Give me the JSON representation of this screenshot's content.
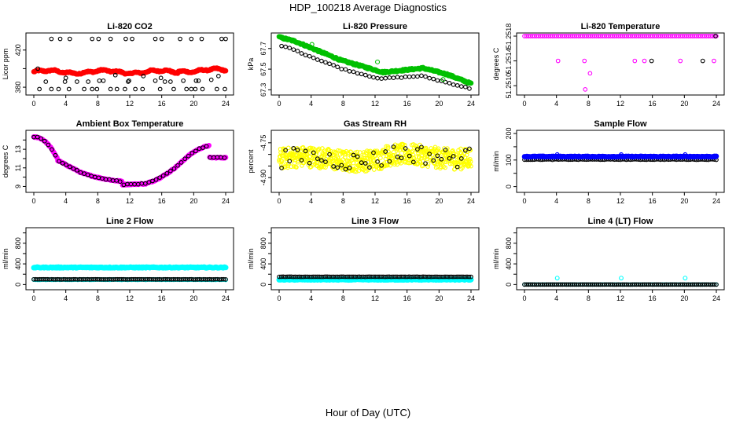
{
  "page": {
    "title": "HDP_100218  Average Diagnostics",
    "xlabel": "Hour of Day (UTC)"
  },
  "colors": {
    "black": "#000000",
    "red": "#ff0000",
    "green": "#00c000",
    "magenta": "#ff00ff",
    "yellow": "#ffff00",
    "blue": "#0000ff",
    "cyan": "#00ffff"
  },
  "chart_data": [
    {
      "id": "co2",
      "type": "scatter",
      "title": "Li-820 CO2",
      "ylabel": "Licor ppm",
      "xlim": [
        0,
        24
      ],
      "xticks": [
        0,
        4,
        8,
        12,
        16,
        20,
        24
      ],
      "ylim": [
        375,
        435
      ],
      "yticks": [
        380,
        400,
        420
      ],
      "yticklabels": [
        "380",
        "",
        "420"
      ],
      "series": [
        {
          "color": "#ff0000",
          "style": "band",
          "from": 0,
          "to": 24,
          "step": 0.1,
          "expr": "396.5+1.5*Math.sin(x*0.9)+0.8*Math.sin(x*3.1)+(x>18?1.5:0)",
          "jitter": 0.6,
          "size": 3.0
        },
        {
          "color": "#000000",
          "style": "points",
          "x": [
            0.7,
            2.2,
            3.1,
            4.4,
            6.3,
            7.3,
            7.9,
            9.6,
            10.4,
            11.4,
            12.7,
            13.6,
            15.8,
            17.5,
            19.1,
            19.7,
            20.2,
            21.1,
            22.9,
            23.9,
            0.5,
            1.5,
            4.0,
            5.4,
            6.8,
            8.7,
            10.2,
            11.9,
            13.7,
            15.2,
            15.9,
            17.1,
            18.7,
            20.3,
            22.2,
            23.1,
            3.9,
            8.2,
            11.8,
            16.4,
            20.6
          ],
          "y": [
            378,
            378,
            378,
            378,
            378,
            378,
            378,
            378,
            378,
            378,
            378,
            378,
            378,
            378,
            378,
            378,
            378,
            378,
            378,
            378,
            400,
            386,
            390,
            386,
            386,
            387,
            393,
            387,
            392,
            387,
            390,
            386,
            387,
            387,
            388,
            392,
            386,
            387,
            386,
            386,
            387
          ],
          "size": 2.3
        },
        {
          "color": "#000000",
          "style": "points",
          "x": [
            2.2,
            3.3,
            4.5,
            7.3,
            8.1,
            9.6,
            11.5,
            12.3,
            15.2,
            16.0,
            18.3,
            19.7,
            21.0,
            23.5,
            24.0
          ],
          "y": [
            432,
            432,
            432,
            432,
            432,
            432,
            432,
            432,
            432,
            432,
            432,
            432,
            432,
            432,
            432
          ],
          "size": 2.3
        }
      ]
    },
    {
      "id": "pressure",
      "type": "scatter",
      "title": "Li-820 Pressure",
      "ylabel": "kPa",
      "xlim": [
        0,
        24
      ],
      "xticks": [
        0,
        4,
        8,
        12,
        16,
        20,
        24
      ],
      "ylim": [
        67.28,
        67.82
      ],
      "yticks": [
        67.3,
        67.5,
        67.7
      ],
      "yticklabels": [
        "67.3",
        "67.5",
        "67.7"
      ],
      "series": [
        {
          "color": "#00c000",
          "style": "band",
          "from": 0,
          "to": 24,
          "step": 0.1,
          "expr": "x<2?67.81-0.02*x:(x<8?67.77-0.032*(x-2):(x<13?67.58-0.022*(x-8):(x<18?67.47+0.008*(x-13):(x<21?67.51-0.02*(x-18):67.45-0.03*(x-21)))))",
          "jitter": 0.008,
          "size": 3.0
        },
        {
          "color": "#000000",
          "style": "points",
          "from": 0.3,
          "to": 24,
          "step": 0.5,
          "expr": "x<2?67.73-0.02*x:(x<8?67.68-0.03*(x-2):(x<13?67.5-0.02*(x-8):(x<18?67.41+0.005*(x-13):(x<21?67.43-0.02*(x-18):67.37-0.02*(x-21)))))",
          "jitter": 0.005,
          "size": 2.3
        },
        {
          "color": "#00c000",
          "style": "points",
          "x": [
            4.1,
            12.3,
            20.5
          ],
          "y": [
            67.74,
            67.57,
            67.4
          ],
          "size": 2.5
        }
      ]
    },
    {
      "id": "li820temp",
      "type": "scatter",
      "title": "Li-820 Temperature",
      "ylabel": "degrees C",
      "xlim": [
        0,
        24
      ],
      "xticks": [
        0,
        4,
        8,
        12,
        16,
        20,
        24
      ],
      "ylim": [
        51.2509,
        51.2518
      ],
      "yticks": [
        51.251,
        51.2514,
        51.2518
      ],
      "yticklabels": [
        "51.2510",
        "51.2514",
        "51.2518"
      ],
      "series": [
        {
          "color": "#ff00ff",
          "style": "points",
          "from": 0,
          "to": 24,
          "step": 0.25,
          "expr": "51.2518",
          "jitter": 0,
          "size": 2.3
        },
        {
          "color": "#000000",
          "style": "points",
          "x": [
            15.9,
            22.3,
            23.9
          ],
          "y": [
            51.2514,
            51.2514,
            51.2518
          ],
          "size": 2.3
        },
        {
          "color": "#ff00ff",
          "style": "points",
          "x": [
            4.2,
            7.5,
            7.6,
            8.2,
            13.8,
            15.0,
            19.5,
            23.7
          ],
          "y": [
            51.2514,
            51.2514,
            51.25094,
            51.2512,
            51.2514,
            51.2514,
            51.2514,
            51.2514
          ],
          "size": 2.3
        }
      ]
    },
    {
      "id": "ambient",
      "type": "scatter",
      "title": "Ambient Box Temperature",
      "ylabel": "degrees C",
      "xlim": [
        0,
        24
      ],
      "xticks": [
        0,
        4,
        8,
        12,
        16,
        20,
        24
      ],
      "ylim": [
        8.7,
        14.7
      ],
      "yticks": [
        9,
        10,
        11,
        12,
        13,
        14
      ],
      "yticklabels": [
        "9",
        "",
        "11",
        "",
        "13",
        ""
      ],
      "series": [
        {
          "color": "#ff00ff",
          "style": "band",
          "from": 0,
          "to": 24,
          "step": 0.1,
          "expr": "x<3?14.3-0.9*x*x/3+0.1*x:(x<6?11.8-0.45*(x-3):(x<11?10.45-0.28*(x-6)+0.02*(x-6)*(x-6):(x<14?9.2+0.03*(x-11):(x<19?9.3+0.25*(x-14)+0.06*(x-14)*(x-14):(x<22?12.05-0.1*(x-19)*(x-19)+0.75*(x-19):12.1)))))",
          "jitter": 0.05,
          "size": 3.0
        },
        {
          "color": "#000000",
          "style": "points",
          "from": 0,
          "to": 24,
          "step": 0.45,
          "expr": "x<3?14.3-0.9*x*x/3+0.1*x:(x<6?11.8-0.45*(x-3):(x<11?10.45-0.28*(x-6)+0.02*(x-6)*(x-6):(x<14?9.2+0.03*(x-11):(x<19?9.3+0.25*(x-14)+0.06*(x-14)*(x-14):(x<22?12.05-0.1*(x-19)*(x-19)+0.75*(x-19):12.1)))))",
          "jitter": 0.04,
          "size": 2.3
        }
      ]
    },
    {
      "id": "rh",
      "type": "scatter",
      "title": "Gas Stream RH",
      "ylabel": "percent",
      "xlim": [
        0,
        24
      ],
      "xticks": [
        0,
        4,
        8,
        12,
        16,
        20,
        24
      ],
      "ylim": [
        -4.95,
        -4.71
      ],
      "yticks": [
        -4.9,
        -4.85,
        -4.8,
        -4.75
      ],
      "yticklabels": [
        "-4.90",
        "",
        "",
        "-4.75"
      ],
      "series": [
        {
          "color": "#ffff00",
          "style": "points",
          "from": 0,
          "to": 24,
          "step": 0.04,
          "expr": "-4.82+0.01*Math.sin(x*0.5)+(x>13?0.01:0)",
          "jitter": 0.045,
          "size": 2.3
        },
        {
          "color": "#000000",
          "style": "points",
          "from": 0.3,
          "to": 24,
          "step": 0.5,
          "expr": "-4.82+0.01*Math.sin(x*0.5)+(x>13?0.015:0)",
          "jitter": 0.04,
          "size": 2.3
        }
      ]
    },
    {
      "id": "sample",
      "type": "scatter",
      "title": "Sample Flow",
      "ylabel": "ml/min",
      "xlim": [
        0,
        24
      ],
      "xticks": [
        0,
        4,
        8,
        12,
        16,
        20,
        24
      ],
      "ylim": [
        -10,
        200
      ],
      "yticks": [
        0,
        50,
        100,
        150,
        200
      ],
      "yticklabels": [
        "0",
        "",
        "100",
        "",
        "200"
      ],
      "series": [
        {
          "color": "#000000",
          "style": "points",
          "from": 0,
          "to": 24,
          "step": 0.25,
          "expr": "102",
          "jitter": 1,
          "size": 2.3
        },
        {
          "color": "#0000ff",
          "style": "band",
          "from": 0,
          "to": 24,
          "step": 0.1,
          "expr": "113",
          "jitter": 1.5,
          "size": 3.0
        },
        {
          "color": "#0000ff",
          "style": "points",
          "x": [
            4.1,
            12.1,
            20.1
          ],
          "y": [
            121,
            121,
            121
          ],
          "size": 2.3
        }
      ]
    },
    {
      "id": "line2",
      "type": "scatter",
      "title": "Line 2 Flow",
      "ylabel": "ml/min",
      "xlim": [
        0,
        24
      ],
      "xticks": [
        0,
        4,
        8,
        12,
        16,
        20,
        24
      ],
      "ylim": [
        -40,
        1040
      ],
      "yticks": [
        0,
        200,
        400,
        600,
        800,
        1000
      ],
      "yticklabels": [
        "0",
        "",
        "400",
        "",
        "800",
        ""
      ],
      "series": [
        {
          "color": "#00ffff",
          "style": "band",
          "from": 0,
          "to": 24,
          "step": 0.1,
          "expr": "330",
          "jitter": 8,
          "size": 3.2
        },
        {
          "color": "#00ffff",
          "style": "points",
          "from": 0,
          "to": 24,
          "step": 0.25,
          "expr": "95",
          "jitter": 3,
          "size": 2.5
        },
        {
          "color": "#000000",
          "style": "points",
          "from": 0,
          "to": 24,
          "step": 0.25,
          "expr": "100",
          "jitter": 2,
          "size": 2.3
        }
      ]
    },
    {
      "id": "line3",
      "type": "scatter",
      "title": "Line 3 Flow",
      "ylabel": "ml/min",
      "xlim": [
        0,
        24
      ],
      "xticks": [
        0,
        4,
        8,
        12,
        16,
        20,
        24
      ],
      "ylim": [
        -40,
        1040
      ],
      "yticks": [
        0,
        200,
        400,
        600,
        800,
        1000
      ],
      "yticklabels": [
        "0",
        "",
        "400",
        "",
        "800",
        ""
      ],
      "series": [
        {
          "color": "#00ffff",
          "style": "band",
          "from": 0,
          "to": 24,
          "step": 0.1,
          "expr": "95",
          "jitter": 8,
          "size": 3.2
        },
        {
          "color": "#000000",
          "style": "points",
          "from": 0,
          "to": 24,
          "step": 0.25,
          "expr": "150",
          "jitter": 2,
          "size": 2.3
        }
      ]
    },
    {
      "id": "line4",
      "type": "scatter",
      "title": "Line 4 (LT) Flow",
      "ylabel": "ml/min",
      "xlim": [
        0,
        24
      ],
      "xticks": [
        0,
        4,
        8,
        12,
        16,
        20,
        24
      ],
      "ylim": [
        -40,
        1040
      ],
      "yticks": [
        0,
        200,
        400,
        600,
        800,
        1000
      ],
      "yticklabels": [
        "0",
        "",
        "400",
        "",
        "800",
        ""
      ],
      "series": [
        {
          "color": "#00ffff",
          "style": "points",
          "from": 0,
          "to": 24,
          "step": 0.25,
          "expr": "0",
          "jitter": 1,
          "size": 2.3
        },
        {
          "color": "#000000",
          "style": "points",
          "from": 0,
          "to": 24,
          "step": 0.25,
          "expr": "0",
          "jitter": 1,
          "size": 2.3
        },
        {
          "color": "#00ffff",
          "style": "points",
          "x": [
            4.1,
            12.1,
            20.1
          ],
          "y": [
            125,
            125,
            125
          ],
          "size": 2.4
        }
      ]
    }
  ]
}
